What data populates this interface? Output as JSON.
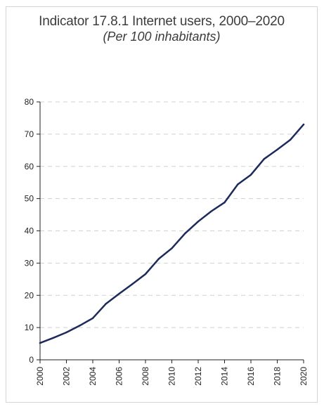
{
  "chart_data": {
    "type": "line",
    "title": "Indicator 17.8.1 Internet users, 2000–2020",
    "subtitle": "(Per 100 inhabitants)",
    "xlabel": "",
    "ylabel": "",
    "x": [
      2000,
      2001,
      2002,
      2003,
      2004,
      2005,
      2006,
      2007,
      2008,
      2009,
      2010,
      2011,
      2012,
      2013,
      2014,
      2015,
      2016,
      2017,
      2018,
      2019,
      2020
    ],
    "series": [
      {
        "name": "",
        "values": [
          5.2,
          6.8,
          8.5,
          10.6,
          12.9,
          17.4,
          20.5,
          23.5,
          26.6,
          31.3,
          34.6,
          39.2,
          42.9,
          46.1,
          48.8,
          54.4,
          57.4,
          62.3,
          65.2,
          68.3,
          73.0
        ],
        "color": "#1c2b5a"
      }
    ],
    "xticks": [
      "2000",
      "2002",
      "2004",
      "2006",
      "2008",
      "2010",
      "2012",
      "2014",
      "2016",
      "2018",
      "2020"
    ],
    "yticks": [
      "0",
      "10",
      "20",
      "30",
      "40",
      "50",
      "60",
      "70",
      "80"
    ],
    "xlim": [
      2000,
      2020
    ],
    "ylim": [
      0,
      80
    ],
    "grid": true,
    "colors": {
      "grid": "#d0d0d0",
      "axis": "#222222",
      "line": "#1c2b5a"
    }
  }
}
